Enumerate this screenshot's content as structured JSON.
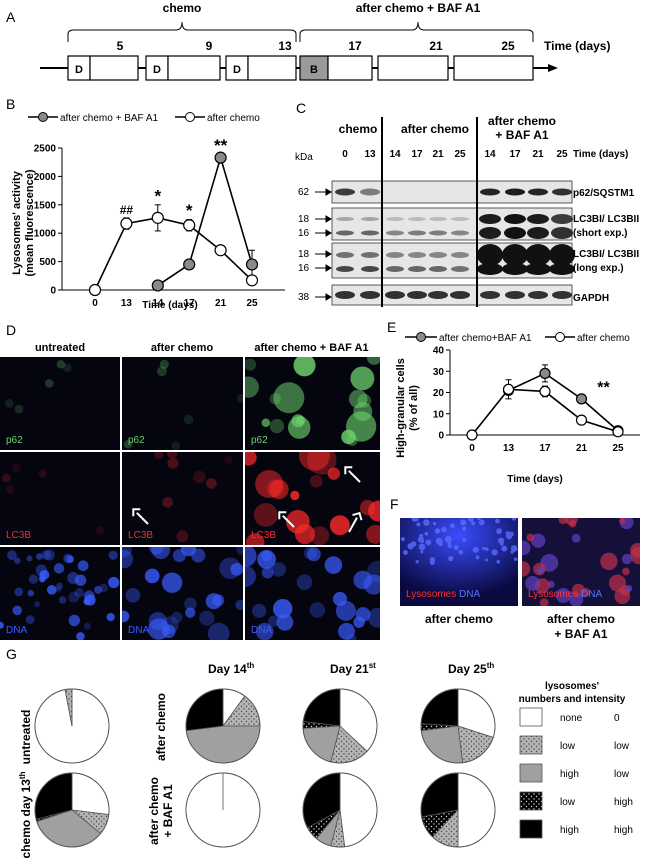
{
  "panelA": {
    "letter": "A",
    "chemo_label": "chemo",
    "after_label": "after chemo + BAF A1",
    "day_ticks": [
      "5",
      "9",
      "13",
      "17",
      "21",
      "25"
    ],
    "time_label": "Time (days)",
    "box_labels": [
      "D",
      "D",
      "D",
      "B"
    ]
  },
  "panelB": {
    "letter": "B",
    "legend": [
      "after chemo + BAF A1",
      "after chemo"
    ],
    "ylabel_line1": "Lysosomes' activity",
    "ylabel_line2": "(mean fluorescence)",
    "xlabel": "Time (days)",
    "y_ticks": [
      "0",
      "500",
      "1000",
      "1500",
      "2000",
      "2500"
    ],
    "x_ticks": [
      "0",
      "13",
      "14",
      "17",
      "21",
      "25"
    ],
    "annotations": [
      "##",
      "*",
      "*",
      "**"
    ]
  },
  "panelC": {
    "letter": "C",
    "group_labels": [
      "chemo",
      "after chemo",
      "after chemo",
      "+ BAF A1"
    ],
    "kda": "kDa",
    "lanes": [
      "0",
      "13",
      "14",
      "17",
      "21",
      "25",
      "14",
      "17",
      "21",
      "25"
    ],
    "time_label": "Time (days)",
    "mw": [
      "62",
      "18",
      "16",
      "18",
      "16",
      "38"
    ],
    "blots": [
      "p62/SQSTM1",
      "LC3BI/ LC3BII",
      "(short exp.)",
      "LC3BI/ LC3BII",
      "(long exp.)",
      "GAPDH"
    ]
  },
  "panelD": {
    "letter": "D",
    "columns": [
      "untreated",
      "after chemo",
      "after chemo + BAF A1"
    ],
    "rows": [
      "p62",
      "LC3B",
      "DNA"
    ]
  },
  "panelE": {
    "letter": "E",
    "legend": [
      "after chemo+BAF A1",
      "after chemo"
    ],
    "ylabel_line1": "High-granular cells",
    "ylabel_line2": "(% of all)",
    "xlabel": "Time (days)",
    "y_ticks": [
      "0",
      "10",
      "20",
      "30",
      "40"
    ],
    "x_ticks": [
      "0",
      "13",
      "17",
      "21",
      "25"
    ],
    "annotation": "**"
  },
  "panelF": {
    "letter": "F",
    "img_labels": [
      "Lysosomes",
      "DNA"
    ],
    "captions": [
      "after chemo",
      "after chemo",
      "+ BAF A1"
    ]
  },
  "panelG": {
    "letter": "G",
    "col_headers": [
      "Day 14",
      "th",
      "Day 21",
      "st",
      "Day 25",
      "th"
    ],
    "row_labels": [
      "untreated",
      "chemo day 13",
      "th",
      "after chemo",
      "after chemo",
      "+ BAF A1"
    ],
    "legend_title": [
      "lysosomes'",
      "numbers and intensity"
    ],
    "legend_rows": [
      {
        "left": "none",
        "right": "0"
      },
      {
        "left": "low",
        "right": "low"
      },
      {
        "left": "high",
        "right": "low"
      },
      {
        "left": "low",
        "right": "high"
      },
      {
        "left": "high",
        "right": "high"
      }
    ],
    "colors": {
      "none": "#ffffff",
      "gray": "#a0a0a0",
      "black": "#000000"
    }
  },
  "chart_data": [
    {
      "type": "line",
      "id": "B",
      "x": [
        0,
        13,
        14,
        17,
        21,
        25
      ],
      "series": [
        {
          "name": "after chemo + BAF A1",
          "values": [
            null,
            null,
            80,
            450,
            2330,
            450
          ],
          "errors": [
            null,
            null,
            0,
            0,
            0,
            250
          ],
          "marker": "gray"
        },
        {
          "name": "after chemo",
          "values": [
            0,
            1170,
            1270,
            1140,
            700,
            170
          ],
          "errors": [
            0,
            100,
            230,
            100,
            0,
            0
          ],
          "marker": "white"
        }
      ],
      "xlabel": "Time (days)",
      "ylabel": "Lysosomes' activity (mean fluorescence)",
      "ylim": [
        0,
        2500
      ]
    },
    {
      "type": "line",
      "id": "E",
      "x": [
        0,
        13,
        17,
        21,
        25
      ],
      "series": [
        {
          "name": "after chemo+BAF A1",
          "values": [
            null,
            21,
            29,
            17,
            2
          ],
          "errors": [
            null,
            0,
            4,
            2,
            0
          ],
          "marker": "gray"
        },
        {
          "name": "after chemo",
          "values": [
            0,
            21.5,
            20.5,
            7,
            1.5
          ],
          "errors": [
            0,
            4.5,
            2.5,
            0,
            0
          ],
          "marker": "white"
        }
      ],
      "xlabel": "Time (days)",
      "ylabel": "High-granular cells (% of all)",
      "ylim": [
        0,
        40
      ]
    },
    {
      "type": "pie",
      "id": "G",
      "categories": [
        "none 0",
        "low low",
        "high low",
        "low high",
        "high high"
      ],
      "pies": [
        {
          "label": "untreated",
          "values": [
            97,
            3,
            0,
            0,
            0
          ]
        },
        {
          "label": "chemo day 13th",
          "values": [
            27,
            9,
            34,
            1,
            29
          ]
        },
        {
          "label": "after chemo Day 14th",
          "values": [
            10,
            15,
            48,
            0,
            27
          ]
        },
        {
          "label": "after chemo Day 21st",
          "values": [
            37,
            17,
            20,
            3,
            23
          ]
        },
        {
          "label": "after chemo Day 25th",
          "values": [
            30,
            18,
            25,
            3,
            24
          ]
        },
        {
          "label": "after chemo + BAF A1 Day 14th",
          "values": [
            100,
            0,
            0,
            0,
            0
          ]
        },
        {
          "label": "after chemo + BAF A1 Day 21st",
          "values": [
            48,
            6,
            7,
            6,
            33
          ]
        },
        {
          "label": "after chemo + BAF A1 Day 25th",
          "values": [
            50,
            12,
            0,
            10,
            28
          ]
        }
      ]
    }
  ]
}
